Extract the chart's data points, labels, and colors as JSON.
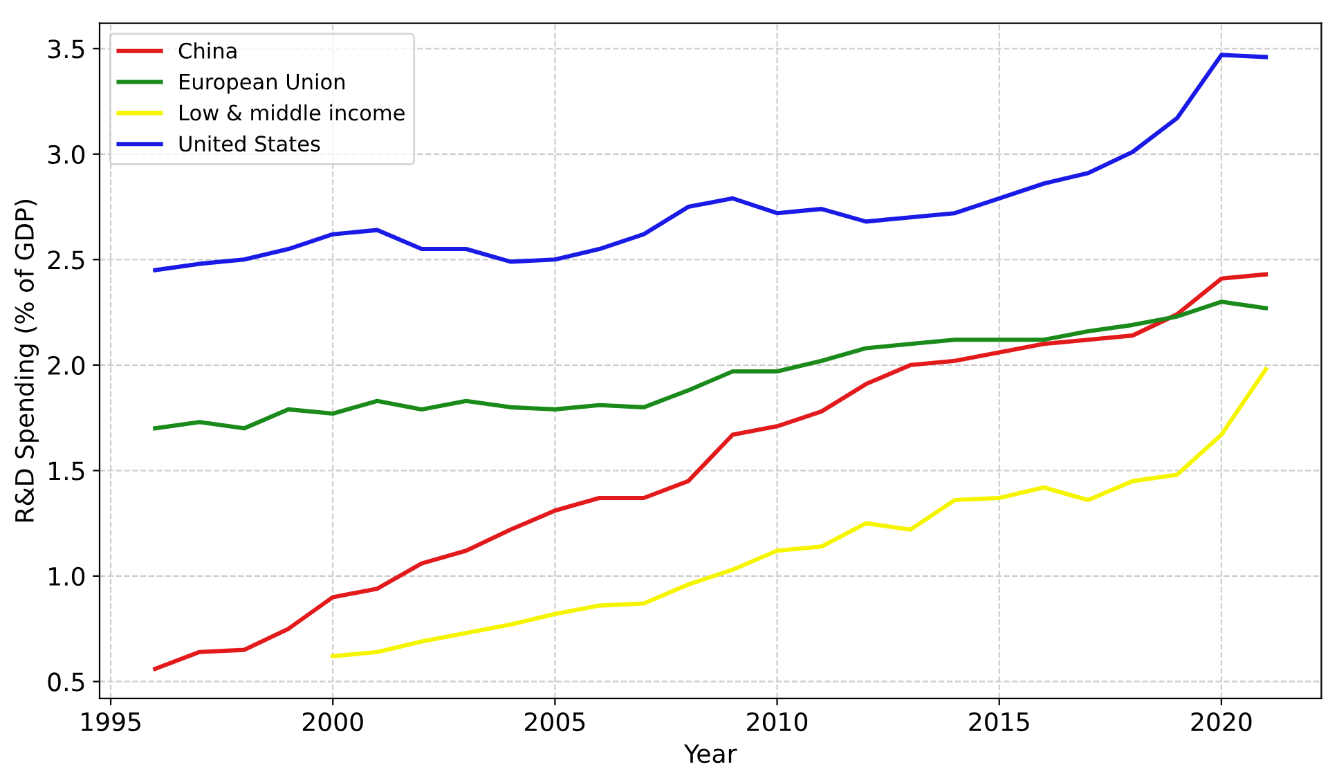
{
  "chart_data": {
    "type": "line",
    "xlabel": "Year",
    "ylabel": "R&D Spending (% of GDP)",
    "x": [
      1996,
      1997,
      1998,
      1999,
      2000,
      2001,
      2002,
      2003,
      2004,
      2005,
      2006,
      2007,
      2008,
      2009,
      2010,
      2011,
      2012,
      2013,
      2014,
      2015,
      2016,
      2017,
      2018,
      2019,
      2020,
      2021
    ],
    "series": [
      {
        "name": "China",
        "color": "#e31a1c",
        "values": [
          0.56,
          0.64,
          0.65,
          0.75,
          0.9,
          0.94,
          1.06,
          1.12,
          1.22,
          1.31,
          1.37,
          1.37,
          1.45,
          1.67,
          1.71,
          1.78,
          1.91,
          2.0,
          2.02,
          2.06,
          2.1,
          2.12,
          2.14,
          2.24,
          2.41,
          2.43
        ]
      },
      {
        "name": "European Union",
        "color": "#1a8a1a",
        "values": [
          1.7,
          1.73,
          1.7,
          1.79,
          1.77,
          1.83,
          1.79,
          1.83,
          1.8,
          1.79,
          1.81,
          1.8,
          1.88,
          1.97,
          1.97,
          2.02,
          2.08,
          2.1,
          2.12,
          2.12,
          2.12,
          2.16,
          2.19,
          2.23,
          2.3,
          2.27
        ]
      },
      {
        "name": "Low & middle income",
        "color": "#f5f500",
        "values": [
          null,
          null,
          null,
          null,
          0.62,
          0.64,
          0.69,
          0.73,
          0.77,
          0.82,
          0.86,
          0.87,
          0.96,
          1.03,
          1.12,
          1.14,
          1.25,
          1.22,
          1.36,
          1.37,
          1.42,
          1.36,
          1.45,
          1.48,
          1.67,
          1.98
        ]
      },
      {
        "name": "United States",
        "color": "#1a1ae6",
        "values": [
          2.45,
          2.48,
          2.5,
          2.55,
          2.62,
          2.64,
          2.55,
          2.55,
          2.49,
          2.5,
          2.55,
          2.62,
          2.75,
          2.79,
          2.72,
          2.74,
          2.68,
          2.7,
          2.72,
          2.79,
          2.86,
          2.91,
          3.01,
          3.17,
          3.47,
          3.46
        ]
      }
    ],
    "xlim": [
      1994.75,
      2022.25
    ],
    "ylim": [
      0.42,
      3.62
    ],
    "xticks": [
      1995,
      2000,
      2005,
      2010,
      2015,
      2020
    ],
    "yticks": [
      0.5,
      {
        "value": 1,
        "label": "1.0"
      },
      1.5,
      {
        "value": 2,
        "label": "2.0"
      },
      2.5,
      {
        "value": 3,
        "label": "3.0"
      },
      3.5
    ],
    "grid": true,
    "legend": "top left",
    "line_style": "solid",
    "marker": "none"
  }
}
